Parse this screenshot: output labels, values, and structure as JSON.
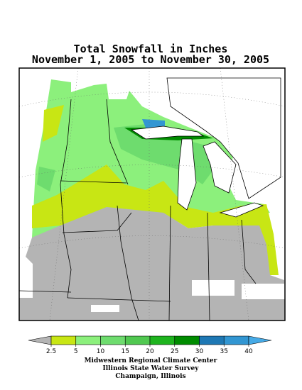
{
  "header": {
    "title_lines": [
      "Total Snowfall in Inches",
      "November 1, 2005 to November 30, 2005"
    ]
  },
  "legend": {
    "ticks": [
      2.5,
      5,
      10,
      15,
      20,
      25,
      30,
      35,
      40
    ],
    "colors": [
      "#b4b4b4",
      "#c8e614",
      "#8cf07c",
      "#6edc6e",
      "#50c850",
      "#1eb41e",
      "#008c00",
      "#1e78b4",
      "#3296d2",
      "#46aae6"
    ]
  },
  "footer": {
    "lines": [
      "Midwestern Regional Climate Center",
      "Illinois State Water Survey",
      "Champaign, Illinois"
    ]
  }
}
